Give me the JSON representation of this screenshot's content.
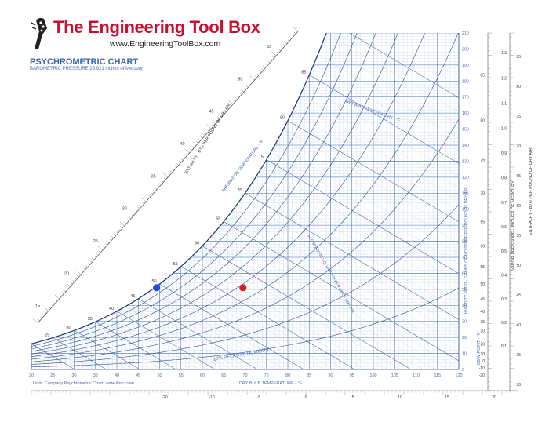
{
  "header": {
    "brand_name": "The Engineering Tool Box",
    "website": "www.EngineeringToolBox.com",
    "logo_icon": "guitar-headstock-logo-icon"
  },
  "chart_data": {
    "type": "psychrometric",
    "title": "PSYCHROMETRIC CHART",
    "subtitle": "BAROMETRIC PRESSURE 29.921 inches of Mercury",
    "credit": "Linric Company Psychrometric Chart, www.linric.com",
    "xlabel": "DRY BULB TEMPERATURE - °F",
    "ylabel_right": "HUMIDITY RATIO - GRAINS OF MOISTURE PER POUND OF DRY AIR",
    "dew_point_label": "DEW POINT - °F",
    "vapor_pressure_label": "VAPOR PRESSURE - INCHES OF MERCURY",
    "enthalpy_right_label": "ENTHALPY - BTU PER POUND OF DRY AIR",
    "enthalpy_left_label": "ENTHALPY - BTU PER POUND OF DRY AIR",
    "saturation_label": "SATURATION TEMPERATURE - °F",
    "wet_bulb_label": "WET BULB TEMPERATURE - °F",
    "specific_volume_label": "14.5 SPECIFIC VOLUME FT³ PER LB OF DRY AIR",
    "rh_label": "10% RELATIVE HUMIDITY",
    "xlim": [
      20,
      120
    ],
    "ylim": [
      0,
      210
    ],
    "x_ticks": [
      20,
      25,
      30,
      35,
      40,
      45,
      50,
      55,
      60,
      65,
      70,
      75,
      80,
      85,
      90,
      95,
      100,
      105,
      110,
      115,
      120
    ],
    "humidity_ticks": [
      0,
      10,
      20,
      30,
      40,
      50,
      60,
      70,
      80,
      90,
      100,
      110,
      120,
      130,
      140,
      150,
      160,
      170,
      180,
      190,
      200,
      210
    ],
    "saturation_labels": [
      25,
      30,
      35,
      40,
      45,
      50,
      55,
      60,
      65,
      70,
      75,
      80,
      85
    ],
    "enthalpy_scale_labels": [
      15,
      20,
      25,
      30,
      35,
      40,
      45,
      50,
      55
    ],
    "enthalpy_right_labels": [
      30,
      35,
      40,
      45,
      50,
      55,
      60,
      65,
      70,
      75,
      80,
      85
    ],
    "dew_point_labels": [
      -20,
      -10,
      0,
      10,
      20,
      30,
      35,
      40,
      45,
      50,
      55,
      60,
      65,
      70,
      75,
      80,
      85
    ],
    "vapor_pressure_labels": [
      0.1,
      0.2,
      0.3,
      0.4,
      0.5,
      0.6,
      0.7,
      0.8,
      0.9,
      1.0,
      1.1,
      1.2,
      1.3
    ],
    "bottom_labels": [
      -20,
      -10,
      -5,
      0,
      5,
      10,
      15,
      20
    ],
    "points": [
      {
        "color": "#1c4fd6",
        "db": 49.3,
        "w": 51
      },
      {
        "color": "#d62020",
        "db": 69.5,
        "w": 51
      }
    ]
  }
}
